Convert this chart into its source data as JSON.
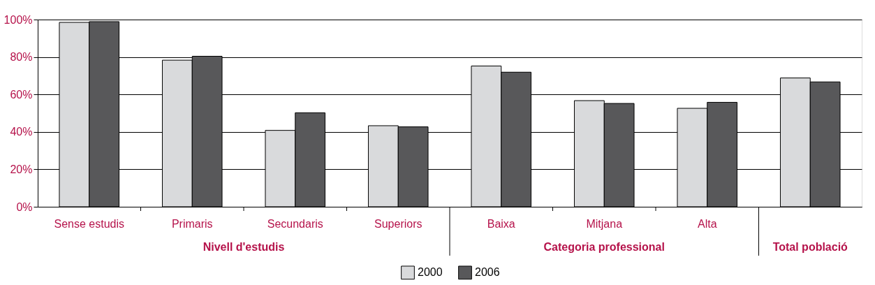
{
  "chart_data": {
    "type": "bar",
    "categories": [
      "Sense estudis",
      "Primaris",
      "Secundaris",
      "Superiors",
      "Baixa",
      "Mitjana",
      "Alta",
      null
    ],
    "series": [
      {
        "name": "2000",
        "color": "#d9dadc",
        "values": [
          98.5,
          78.3,
          40.8,
          43.3,
          75.2,
          56.7,
          52.6,
          68.8
        ]
      },
      {
        "name": "2006",
        "color": "#58585a",
        "values": [
          98.9,
          80.4,
          50.2,
          42.7,
          71.9,
          55.2,
          55.8,
          66.7
        ]
      }
    ],
    "ylim": [
      0,
      100
    ],
    "yticks": [
      {
        "value": 0,
        "label": "0%"
      },
      {
        "value": 20,
        "label": "20%"
      },
      {
        "value": 40,
        "label": "40%"
      },
      {
        "value": 60,
        "label": "60%"
      },
      {
        "value": 80,
        "label": "80%"
      },
      {
        "value": 100,
        "label": "100%"
      }
    ],
    "grid": "y",
    "legend": "bottom",
    "annotations": [
      "Nivell d'estudis",
      "Categoria professional",
      "Total població"
    ]
  }
}
